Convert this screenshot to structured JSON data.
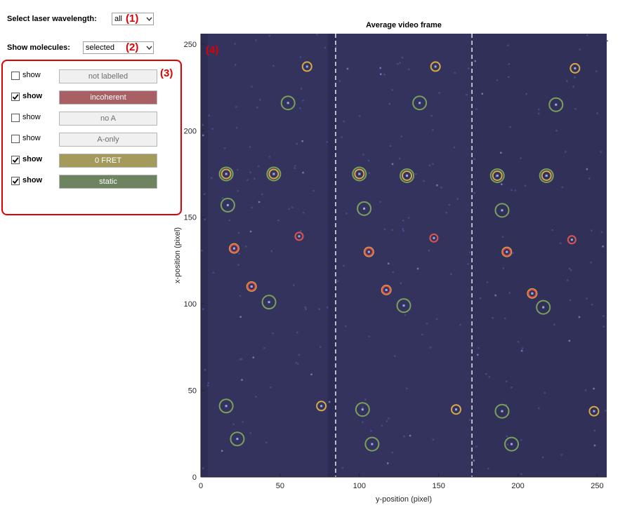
{
  "controls": {
    "laser_label": "Select laser wavelength:",
    "laser_value": "all",
    "laser_tag": "(1)",
    "molecules_label": "Show molecules:",
    "molecules_value": "selected",
    "molecules_tag": "(2)",
    "panel_tag": "(3)",
    "plot_tag": "(4)"
  },
  "filters": [
    {
      "checked": false,
      "text": "show",
      "label": "not labelled",
      "bg": "#f0f0f0",
      "fg": "#6e6e6e"
    },
    {
      "checked": true,
      "text": "show",
      "label": "incoherent",
      "bg": "#a86065",
      "fg": "#ffffff"
    },
    {
      "checked": false,
      "text": "show",
      "label": "no A",
      "bg": "#f0f0f0",
      "fg": "#6e6e6e"
    },
    {
      "checked": false,
      "text": "show",
      "label": "A-only",
      "bg": "#f0f0f0",
      "fg": "#6e6e6e"
    },
    {
      "checked": true,
      "text": "show",
      "label": "0 FRET",
      "bg": "#a39a5c",
      "fg": "#ffffff"
    },
    {
      "checked": true,
      "text": "show",
      "label": "static",
      "bg": "#6e8460",
      "fg": "#ffffff"
    }
  ],
  "chart_data": {
    "type": "scatter",
    "title": "Average video frame",
    "xlabel": "y-position (pixel)",
    "ylabel": "x-position (pixel)",
    "xlim": [
      0,
      256
    ],
    "ylim": [
      0,
      256
    ],
    "xticks": [
      0,
      50,
      100,
      150,
      200,
      250
    ],
    "yticks": [
      0,
      50,
      100,
      150,
      200,
      250
    ],
    "background": "#33335e",
    "divider_lines_x": [
      85,
      171
    ],
    "colors": {
      "incoherent": "#e0544e",
      "0 FRET": "#d6aa45",
      "static": "#7aa059"
    },
    "series": [
      {
        "name": "incoherent",
        "points": [
          [
            21,
            132
          ],
          [
            62,
            139
          ],
          [
            106,
            130
          ],
          [
            117,
            108
          ],
          [
            147,
            138
          ],
          [
            193,
            130
          ],
          [
            209,
            106
          ],
          [
            234,
            137
          ],
          [
            32,
            110
          ]
        ]
      },
      {
        "name": "0 FRET",
        "points": [
          [
            67,
            237
          ],
          [
            148,
            237
          ],
          [
            236,
            236
          ],
          [
            16,
            175
          ],
          [
            46,
            175
          ],
          [
            100,
            175
          ],
          [
            130,
            174
          ],
          [
            187,
            174
          ],
          [
            218,
            174
          ],
          [
            21,
            132
          ],
          [
            106,
            130
          ],
          [
            193,
            130
          ],
          [
            32,
            110
          ],
          [
            117,
            108
          ],
          [
            209,
            106
          ],
          [
            76,
            41
          ],
          [
            161,
            39
          ],
          [
            248,
            38
          ]
        ]
      },
      {
        "name": "static",
        "points": [
          [
            55,
            216
          ],
          [
            138,
            216
          ],
          [
            224,
            215
          ],
          [
            16,
            175
          ],
          [
            46,
            175
          ],
          [
            100,
            175
          ],
          [
            130,
            174
          ],
          [
            187,
            174
          ],
          [
            218,
            174
          ],
          [
            17,
            157
          ],
          [
            103,
            155
          ],
          [
            190,
            154
          ],
          [
            43,
            101
          ],
          [
            128,
            99
          ],
          [
            216,
            98
          ],
          [
            16,
            41
          ],
          [
            102,
            39
          ],
          [
            190,
            38
          ],
          [
            23,
            22
          ],
          [
            108,
            19
          ],
          [
            196,
            19
          ]
        ]
      }
    ]
  }
}
